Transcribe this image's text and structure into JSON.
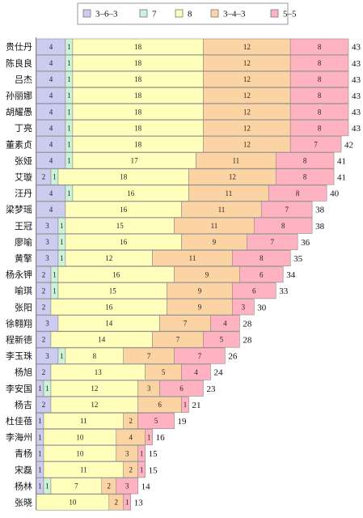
{
  "chart_data": {
    "type": "bar",
    "orientation": "horizontal",
    "stacked": true,
    "title": "",
    "xlabel": "",
    "ylabel": "",
    "xlim": [
      0,
      43
    ],
    "grid": false,
    "legend_position": "top",
    "categories": [
      "贵仕丹",
      "陈良良",
      "吕杰",
      "孙丽娜",
      "胡耀愚",
      "丁亮",
      "董素贞",
      "张娅",
      "艾璇",
      "汪丹",
      "梁梦瑶",
      "王冠",
      "廖喻",
      "黄擎",
      "杨永钾",
      "喻琪",
      "张阳",
      "徐翱翔",
      "程新德",
      "李玉珠",
      "杨旭",
      "李安国",
      "杨吉",
      "杜佳蓓",
      "李海州",
      "青杨",
      "宋磊",
      "杨林",
      "张晓"
    ],
    "totals": [
      43,
      43,
      43,
      43,
      43,
      43,
      42,
      41,
      41,
      40,
      38,
      38,
      36,
      35,
      34,
      33,
      30,
      28,
      28,
      26,
      24,
      23,
      21,
      19,
      16,
      15,
      15,
      14,
      13
    ],
    "series": [
      {
        "name": "3-6-3",
        "color": "#ccccf0",
        "values": [
          4,
          4,
          4,
          4,
          4,
          4,
          4,
          4,
          2,
          4,
          4,
          3,
          3,
          3,
          2,
          2,
          2,
          3,
          2,
          3,
          2,
          1,
          2,
          1,
          1,
          1,
          1,
          1,
          0
        ]
      },
      {
        "name": "7",
        "color": "#ccf2d8",
        "values": [
          1,
          1,
          1,
          1,
          1,
          1,
          1,
          1,
          1,
          1,
          0,
          1,
          1,
          1,
          1,
          1,
          0,
          0,
          0,
          1,
          0,
          1,
          0,
          0,
          0,
          0,
          0,
          1,
          0
        ]
      },
      {
        "name": "8",
        "color": "#ffffbb",
        "values": [
          18,
          18,
          18,
          18,
          18,
          18,
          18,
          17,
          18,
          16,
          16,
          15,
          16,
          12,
          16,
          15,
          16,
          14,
          14,
          8,
          13,
          12,
          12,
          11,
          10,
          10,
          11,
          7,
          10
        ]
      },
      {
        "name": "3-4-3",
        "color": "#fcd4a4",
        "values": [
          12,
          12,
          12,
          12,
          12,
          12,
          12,
          11,
          12,
          11,
          11,
          11,
          9,
          11,
          9,
          9,
          9,
          7,
          7,
          7,
          5,
          3,
          6,
          2,
          4,
          3,
          2,
          2,
          2
        ]
      },
      {
        "name": "5-5",
        "color": "#ffb3c0",
        "values": [
          8,
          8,
          8,
          8,
          8,
          8,
          7,
          8,
          8,
          8,
          7,
          8,
          7,
          8,
          6,
          6,
          3,
          4,
          5,
          7,
          4,
          6,
          1,
          5,
          1,
          1,
          1,
          3,
          1
        ]
      }
    ]
  }
}
